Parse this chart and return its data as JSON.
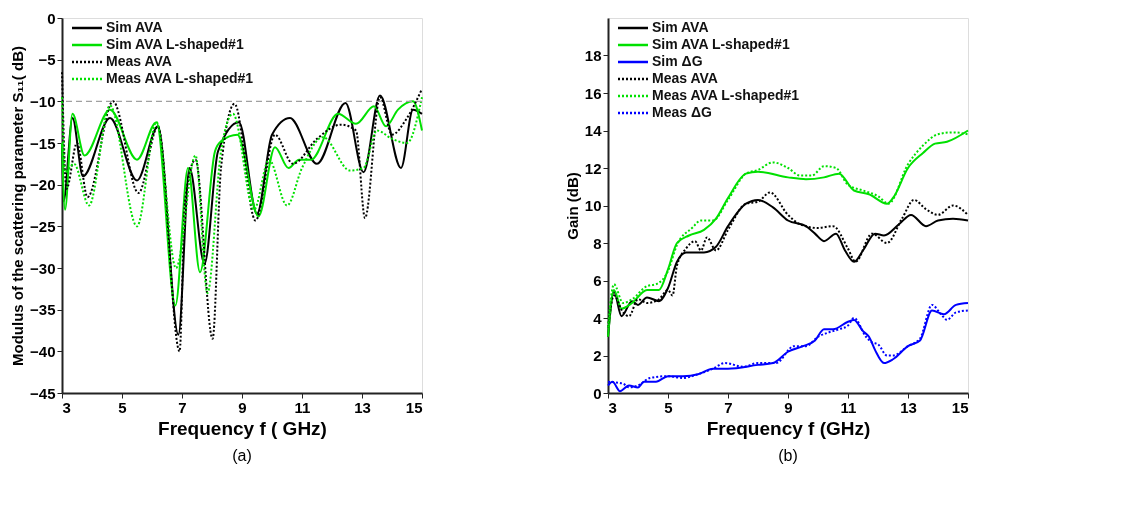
{
  "chart_data": [
    {
      "type": "line",
      "xlabel": "Frequency f ( GHz)",
      "ylabel": "Modulus of the scattering parameter S₁₁( dB)",
      "xlim": [
        3,
        15
      ],
      "ylim": [
        -45,
        0
      ],
      "xticks": [
        3,
        5,
        7,
        9,
        11,
        13,
        15
      ],
      "yticks": [
        -45,
        -40,
        -35,
        -30,
        -25,
        -20,
        -15,
        -10,
        -5,
        0
      ],
      "grid": false,
      "legend": "top left",
      "annotations": [
        "(a)"
      ],
      "ref_lines": [
        {
          "axis": "y",
          "value": -10,
          "color": "#a0a0a0",
          "line_style": "dashed"
        }
      ],
      "series": [
        {
          "name": "Sim AVA",
          "color": "#000000",
          "line_style": "solid",
          "x": [
            3.0,
            3.05,
            3.35,
            3.7,
            4.6,
            5.5,
            6.2,
            6.88,
            7.25,
            7.75,
            8.2,
            8.9,
            9.5,
            10.0,
            10.6,
            11.5,
            12.45,
            13.05,
            13.6,
            14.3,
            14.7,
            15.0
          ],
          "values": [
            -15,
            -22,
            -12,
            -19,
            -12,
            -19.5,
            -13,
            -38,
            -18,
            -29.5,
            -16,
            -12.5,
            -23.5,
            -14,
            -12,
            -17.5,
            -10.2,
            -18.5,
            -9.3,
            -18,
            -11,
            -11.5
          ]
        },
        {
          "name": "Sim AVA L-shaped#1",
          "color": "#00e000",
          "line_style": "solid",
          "x": [
            3.0,
            3.1,
            3.35,
            3.75,
            4.6,
            5.5,
            6.15,
            6.78,
            7.2,
            7.6,
            8.1,
            8.3,
            8.85,
            9.55,
            10.1,
            10.55,
            10.9,
            11.3,
            12.2,
            12.8,
            13.4,
            13.8,
            14.2,
            14.7,
            15.0
          ],
          "values": [
            -15,
            -23,
            -11.5,
            -16.5,
            -11,
            -17,
            -12.5,
            -34.5,
            -18,
            -30.5,
            -16,
            -14.8,
            -14,
            -23.8,
            -15.5,
            -18,
            -17,
            -17,
            -11.5,
            -12.7,
            -10.6,
            -13,
            -11,
            -10,
            -13.5
          ]
        },
        {
          "name": "Meas AVA",
          "color": "#000000",
          "line_style": "dotted",
          "x": [
            3.0,
            3.15,
            3.5,
            3.85,
            4.7,
            5.55,
            6.2,
            6.92,
            7.1,
            7.45,
            8.02,
            8.3,
            8.75,
            9.45,
            10.1,
            10.7,
            11.5,
            12.3,
            12.8,
            13.1,
            13.6,
            14.0,
            14.5,
            15.0
          ],
          "values": [
            -6.5,
            -20.5,
            -15,
            -21.5,
            -10,
            -21,
            -13,
            -40,
            -22,
            -17,
            -38.5,
            -18,
            -10.3,
            -24.3,
            -14,
            -17.5,
            -14.5,
            -12.8,
            -13.5,
            -24,
            -9.5,
            -14,
            -12,
            -8.5
          ]
        },
        {
          "name": "Meas AVA L-shaped#1",
          "color": "#00e000",
          "line_style": "dotted",
          "x": [
            3.0,
            3.1,
            3.4,
            3.9,
            4.6,
            5.5,
            6.15,
            6.8,
            7.45,
            7.85,
            8.3,
            8.7,
            9.4,
            9.9,
            10.5,
            11.0,
            11.7,
            12.6,
            13.05,
            13.5,
            14.0,
            14.5,
            15.0
          ],
          "values": [
            -9.5,
            -18.5,
            -17.5,
            -22.5,
            -10.5,
            -25,
            -12.5,
            -30,
            -16.5,
            -33,
            -16,
            -11.5,
            -23,
            -17,
            -22.5,
            -18,
            -14.3,
            -18.3,
            -18,
            -13.5,
            -14.5,
            -15,
            -9.5
          ]
        }
      ]
    },
    {
      "type": "line",
      "xlabel": "Frequency  f (GHz)",
      "ylabel": "Gain (dB)",
      "xlim": [
        3,
        15
      ],
      "ylim": [
        0,
        20
      ],
      "xticks": [
        3,
        5,
        7,
        9,
        11,
        13,
        15
      ],
      "yticks": [
        0,
        2,
        4,
        6,
        8,
        10,
        12,
        14,
        16,
        18
      ],
      "grid": false,
      "legend": "top left",
      "annotations": [
        "(b)"
      ],
      "series": [
        {
          "name": "Sim AVA",
          "color": "#000000",
          "line_style": "solid",
          "x": [
            3.0,
            3.2,
            3.45,
            3.8,
            4.0,
            4.3,
            4.7,
            5.0,
            5.3,
            5.6,
            6.2,
            6.6,
            7.0,
            7.6,
            8.0,
            8.5,
            9.0,
            9.6,
            9.9,
            10.2,
            10.6,
            10.9,
            11.2,
            11.5,
            11.9,
            12.2,
            12.7,
            13.1,
            13.6,
            14.0,
            14.5,
            15.0
          ],
          "values": [
            3.0,
            5.4,
            4.1,
            4.9,
            4.7,
            5.1,
            4.9,
            5.6,
            7.0,
            7.5,
            7.5,
            7.8,
            8.9,
            10.1,
            10.3,
            9.9,
            9.2,
            8.9,
            8.5,
            8.1,
            8.5,
            7.6,
            7.0,
            7.6,
            8.5,
            8.4,
            9.0,
            9.5,
            8.9,
            9.2,
            9.3,
            9.2
          ]
        },
        {
          "name": "Sim AVA L-shaped#1",
          "color": "#00e000",
          "line_style": "solid",
          "x": [
            3.0,
            3.2,
            3.45,
            3.8,
            4.3,
            4.7,
            5.0,
            5.3,
            5.7,
            6.2,
            6.6,
            7.0,
            7.6,
            8.0,
            9.0,
            9.6,
            10.2,
            10.7,
            11.2,
            11.7,
            12.3,
            12.5,
            13.0,
            13.5,
            13.9,
            14.3,
            15.0
          ],
          "values": [
            3.0,
            5.5,
            4.5,
            4.8,
            5.5,
            5.5,
            6.6,
            8.0,
            8.4,
            8.7,
            9.3,
            10.4,
            11.7,
            11.8,
            11.5,
            11.4,
            11.5,
            11.7,
            10.8,
            10.6,
            10.1,
            10.4,
            12.0,
            12.8,
            13.3,
            13.4,
            14.0
          ]
        },
        {
          "name": "Sim ΔG",
          "color": "#0000ff",
          "line_style": "solid",
          "x": [
            3.0,
            3.15,
            3.4,
            3.7,
            4.0,
            4.2,
            4.6,
            5.0,
            5.5,
            6.0,
            6.5,
            7.0,
            8.0,
            8.5,
            9.0,
            9.5,
            9.9,
            10.2,
            10.5,
            11.0,
            11.2,
            11.5,
            11.7,
            11.9,
            12.2,
            12.5,
            13.0,
            13.4,
            13.8,
            14.2,
            14.6,
            15.0
          ],
          "values": [
            0.4,
            0.6,
            0.1,
            0.4,
            0.3,
            0.6,
            0.6,
            0.9,
            0.9,
            1.0,
            1.3,
            1.3,
            1.5,
            1.6,
            2.2,
            2.5,
            2.8,
            3.4,
            3.4,
            3.8,
            3.9,
            3.3,
            3.0,
            2.3,
            1.6,
            1.8,
            2.5,
            2.8,
            4.4,
            4.2,
            4.7,
            4.8
          ]
        },
        {
          "name": "Meas AVA",
          "color": "#000000",
          "line_style": "dotted",
          "x": [
            3.0,
            3.2,
            3.5,
            3.7,
            4.0,
            4.3,
            4.7,
            5.0,
            5.15,
            5.3,
            5.6,
            5.9,
            6.1,
            6.3,
            6.6,
            7.0,
            7.6,
            8.0,
            8.4,
            9.0,
            9.4,
            10.0,
            10.5,
            11.0,
            11.25,
            11.8,
            12.3,
            12.8,
            13.2,
            13.6,
            14.0,
            14.5,
            15.0
          ],
          "values": [
            3.5,
            5.2,
            4.3,
            4.1,
            5.0,
            4.8,
            5.0,
            5.5,
            5.2,
            6.8,
            7.7,
            8.1,
            7.6,
            8.3,
            7.6,
            8.7,
            10.1,
            10.2,
            10.7,
            9.5,
            9.0,
            8.8,
            8.9,
            7.7,
            7.0,
            8.5,
            8.0,
            9.3,
            10.3,
            9.8,
            9.5,
            10.0,
            9.5
          ]
        },
        {
          "name": "Meas AVA L-shaped#1",
          "color": "#00e000",
          "line_style": "dotted",
          "x": [
            3.0,
            3.2,
            3.5,
            3.8,
            4.3,
            4.6,
            5.0,
            5.3,
            5.8,
            6.1,
            6.5,
            7.0,
            7.6,
            8.0,
            8.5,
            9.0,
            9.4,
            9.8,
            10.2,
            10.6,
            11.0,
            11.5,
            12.0,
            12.35,
            13.0,
            13.5,
            14.0,
            14.5,
            15.0
          ],
          "values": [
            3.5,
            5.8,
            4.8,
            5.0,
            5.7,
            5.8,
            6.5,
            7.9,
            8.8,
            9.2,
            9.2,
            10.3,
            11.7,
            11.9,
            12.3,
            12.0,
            11.6,
            11.6,
            12.1,
            12.0,
            11.1,
            10.8,
            10.5,
            10.1,
            12.2,
            13.2,
            13.8,
            13.9,
            13.8
          ]
        },
        {
          "name": "Meas ΔG",
          "color": "#0000ff",
          "line_style": "dotted",
          "x": [
            3.0,
            3.5,
            3.7,
            4.0,
            4.4,
            5.0,
            5.5,
            6.0,
            6.5,
            6.9,
            7.5,
            8.0,
            8.6,
            9.2,
            9.6,
            10.0,
            10.3,
            10.7,
            11.0,
            11.2,
            11.6,
            11.8,
            12.0,
            12.3,
            12.5,
            13.0,
            13.4,
            13.8,
            14.1,
            14.3,
            14.6,
            15.0
          ],
          "values": [
            0.6,
            0.5,
            0.3,
            0.4,
            0.8,
            0.9,
            0.8,
            1.0,
            1.3,
            1.6,
            1.4,
            1.6,
            1.6,
            2.5,
            2.5,
            3.0,
            3.2,
            3.4,
            3.6,
            4.0,
            3.0,
            2.7,
            2.6,
            2.0,
            2.0,
            2.5,
            2.9,
            4.7,
            4.2,
            3.9,
            4.3,
            4.4
          ]
        }
      ]
    }
  ]
}
